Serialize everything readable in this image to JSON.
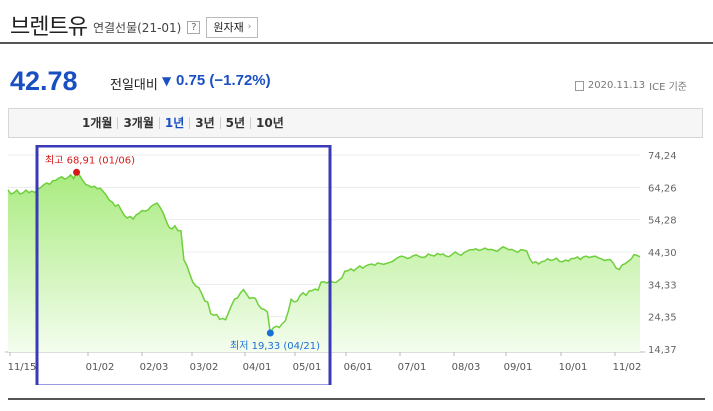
{
  "header": {
    "title": "브렌트유",
    "subtitle": "연결선물(21-01)",
    "help_icon": "?",
    "raw_button_label": "원자재",
    "raw_button_icon": "chevron-right-icon"
  },
  "quote": {
    "price": "42.78",
    "change_label": "전일대비",
    "change_arrow": "▼",
    "change_value": "0.75 (−1.72%)",
    "date": "2020.11.13",
    "source": "ICE 기준"
  },
  "tabs": [
    {
      "label": "1개월",
      "active": false
    },
    {
      "label": "3개월",
      "active": false
    },
    {
      "label": "1년",
      "active": true
    },
    {
      "label": "3년",
      "active": false
    },
    {
      "label": "5년",
      "active": false
    },
    {
      "label": "10년",
      "active": false
    }
  ],
  "colors": {
    "accent": "#1a4fc3",
    "line": "#6fcf3c",
    "fill_top": "#a9eb7f",
    "fill_bottom": "#f4fdee",
    "high": "#d61a1a",
    "low": "#1a6fd6",
    "highlight_box": "#3a3ab8"
  },
  "chart_data": {
    "type": "area",
    "y_ticks": [
      "74,24",
      "64,26",
      "54,28",
      "44,30",
      "34,33",
      "24,35",
      "14,37"
    ],
    "y_range": [
      14.37,
      74.24
    ],
    "x_ticks": [
      "11/15",
      "01/02",
      "02/03",
      "03/02",
      "04/01",
      "05/01",
      "06/01",
      "07/01",
      "08/03",
      "09/01",
      "10/01",
      "11/02"
    ],
    "high_label": "최고 68,91 (01/06)",
    "low_label": "최저 19,33 (04/21)",
    "high": {
      "date": "01/06",
      "value": 68.91
    },
    "low": {
      "date": "04/21",
      "value": 19.33
    },
    "series": [
      {
        "values": [
          63.5,
          62.2,
          62.6,
          63.4,
          62.2,
          62.5,
          63.4,
          62.6,
          63.1,
          62.7,
          63.7,
          64.2,
          65.1,
          65.6,
          65.2,
          66.3,
          66.4,
          67.1,
          67.5,
          66.8,
          67.2,
          68.1,
          67.0,
          68.9,
          68.0,
          66.5,
          65.2,
          64.8,
          64.3,
          64.6,
          63.8,
          64.0,
          62.9,
          61.8,
          60.3,
          59.7,
          58.4,
          58.9,
          57.2,
          55.6,
          54.8,
          55.3,
          54.5,
          55.8,
          56.3,
          57.1,
          56.9,
          57.3,
          58.4,
          59.0,
          59.4,
          58.1,
          56.5,
          54.1,
          51.9,
          51.4,
          52.4,
          50.9,
          50.9,
          41.9,
          40.1,
          37.5,
          35.0,
          33.8,
          33.3,
          31.4,
          29.2,
          28.8,
          25.3,
          24.8,
          25.0,
          23.5,
          23.8,
          23.4,
          25.6,
          27.9,
          29.8,
          30.1,
          31.7,
          32.7,
          31.3,
          30.0,
          30.2,
          30.0,
          28.0,
          26.8,
          26.6,
          25.8,
          19.3,
          20.9,
          21.4,
          21.0,
          22.2,
          23.0,
          25.9,
          29.7,
          28.9,
          29.2,
          30.9,
          31.7,
          30.9,
          32.3,
          32.4,
          32.9,
          32.5,
          35.0,
          35.1,
          34.7,
          35.5,
          35.0,
          34.9,
          35.6,
          36.3,
          38.4,
          38.5,
          39.1,
          38.5,
          39.3,
          40.0,
          39.3,
          40.0,
          40.4,
          40.6,
          40.2,
          40.9,
          40.7,
          40.5,
          40.8,
          41.1,
          41.4,
          42.1,
          42.7,
          43.0,
          42.8,
          42.3,
          42.6,
          43.2,
          43.4,
          42.9,
          42.6,
          42.8,
          43.7,
          43.3,
          43.1,
          43.8,
          43.5,
          43.7,
          43.0,
          42.9,
          43.6,
          44.3,
          43.7,
          43.3,
          44.1,
          44.6,
          45.0,
          45.0,
          45.3,
          44.8,
          45.1,
          45.5,
          45.0,
          45.1,
          44.9,
          44.5,
          45.2,
          45.9,
          45.5,
          45.0,
          45.1,
          44.6,
          44.2,
          45.0,
          44.9,
          44.6,
          42.3,
          40.9,
          41.3,
          40.6,
          41.3,
          41.5,
          42.2,
          41.7,
          41.9,
          42.4,
          41.4,
          41.3,
          41.8,
          41.5,
          42.3,
          42.3,
          42.8,
          42.0,
          42.8,
          43.0,
          42.6,
          42.9,
          43.0,
          42.5,
          42.2,
          41.7,
          41.9,
          42.0,
          40.9,
          39.3,
          38.9,
          40.3,
          40.7,
          41.4,
          42.1,
          43.5,
          43.3,
          42.8
        ]
      }
    ],
    "grid": true
  }
}
